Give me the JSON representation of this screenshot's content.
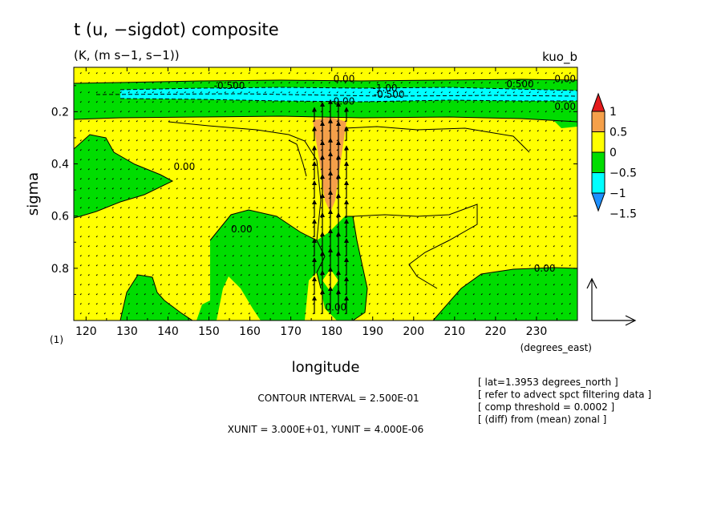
{
  "chart_data": {
    "type": "contour",
    "title": "t (u, −sigdot) composite",
    "units": "(K, (m s−1, s−1))",
    "tag": "kuo_b",
    "xlabel": "longitude",
    "xunit_label": "(degrees_east)",
    "ylabel": "sigma",
    "yunit_label": "(1)",
    "xlim": [
      117,
      240
    ],
    "ylim": [
      1.0,
      0.03
    ],
    "x_ticks": [
      120,
      130,
      140,
      150,
      160,
      170,
      180,
      190,
      200,
      210,
      220,
      230
    ],
    "x_tick_labels": [
      "120",
      "130",
      "140",
      "150",
      "160",
      "170",
      "180",
      "190",
      "200",
      "210",
      "220",
      "230"
    ],
    "y_ticks": [
      0.2,
      0.4,
      0.6,
      0.8
    ],
    "y_tick_labels": [
      "0.2",
      "0.4",
      "0.6",
      "0.8"
    ],
    "contour_interval_text": "CONTOUR INTERVAL = 2.500E-01",
    "vector_unit_text": "XUNIT = 3.000E+01, YUNIT = 4.000E-06",
    "contour_labels": [
      {
        "text": "0.00",
        "lon": 183,
        "sigma": 0.075
      },
      {
        "text": "-0.500",
        "lon": 155,
        "sigma": 0.1
      },
      {
        "text": "-1.00",
        "lon": 193,
        "sigma": 0.11
      },
      {
        "text": "-0.500",
        "lon": 194,
        "sigma": 0.135
      },
      {
        "text": "0.500",
        "lon": 226,
        "sigma": 0.095
      },
      {
        "text": "0.00",
        "lon": 237,
        "sigma": 0.075
      },
      {
        "text": "0.00",
        "lon": 183,
        "sigma": 0.16
      },
      {
        "text": "0.00",
        "lon": 237,
        "sigma": 0.18
      },
      {
        "text": "0.00",
        "lon": 144,
        "sigma": 0.41
      },
      {
        "text": "0.00",
        "lon": 158,
        "sigma": 0.65
      },
      {
        "text": "0.00",
        "lon": 232,
        "sigma": 0.8
      },
      {
        "text": "0.00",
        "lon": 181,
        "sigma": 0.95
      }
    ],
    "colorbar": {
      "levels": [
        "1",
        "0.5",
        "0",
        "−0.5",
        "−1",
        "−1.5"
      ],
      "colors": [
        "#e41a1c",
        "#f5a04a",
        "#ffff00",
        "#00dd00",
        "#00ffff",
        "#1e90ff"
      ]
    },
    "info_lines": [
      "[ lat=1.3953 degrees_north ]",
      "[ refer to advect spct filtering data ]",
      "[ comp threshold = 0.0002 ]",
      "[ (diff) from (mean) zonal ]"
    ]
  }
}
